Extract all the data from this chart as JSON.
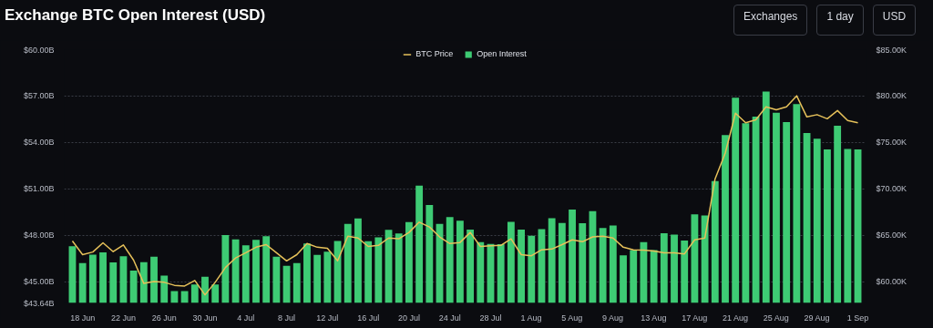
{
  "chart_data": {
    "type": "bar",
    "title": "Exchange BTC Open Interest (USD)",
    "annotations": [
      "Exchanges",
      "1 day",
      "USD"
    ],
    "categories": [
      null,
      "18 Jun",
      null,
      null,
      null,
      "22 Jun",
      null,
      null,
      null,
      "26 Jun",
      null,
      null,
      null,
      "30 Jun",
      null,
      null,
      null,
      "4 Jul",
      null,
      null,
      null,
      "8 Jul",
      null,
      null,
      null,
      "12 Jul",
      null,
      null,
      null,
      "16 Jul",
      null,
      null,
      null,
      "20 Jul",
      null,
      null,
      null,
      "24 Jul",
      null,
      null,
      null,
      "28 Jul",
      null,
      null,
      null,
      "1 Aug",
      null,
      null,
      null,
      "5 Aug",
      null,
      null,
      null,
      "9 Aug",
      null,
      null,
      null,
      "13 Aug",
      null,
      null,
      null,
      "17 Aug",
      null,
      null,
      null,
      "21 Aug",
      null,
      null,
      null,
      "25 Aug",
      null,
      null,
      null,
      "29 Aug",
      null,
      null,
      null,
      "1 Sep"
    ],
    "series": [
      {
        "name": "BTC Price",
        "type": "line",
        "axis": "y2",
        "color": "#e6c15a",
        "values": [
          64.4,
          62.93,
          63.21,
          64.2,
          63.25,
          63.97,
          62.34,
          59.83,
          60.03,
          59.95,
          59.63,
          59.55,
          60.15,
          58.6,
          59.95,
          61.54,
          62.57,
          63.13,
          63.73,
          64.01,
          63.13,
          62.26,
          62.93,
          64.13,
          63.73,
          63.61,
          62.26,
          64.92,
          64.72,
          63.81,
          63.93,
          64.72,
          64.64,
          65.32,
          66.43,
          65.91,
          64.84,
          64.13,
          64.24,
          65.32,
          63.81,
          63.89,
          63.93,
          64.64,
          62.93,
          62.81,
          63.45,
          63.53,
          64.01,
          64.52,
          64.32,
          64.84,
          64.92,
          64.72,
          63.73,
          63.45,
          63.41,
          63.33,
          63.13,
          63.13,
          63.01,
          64.52,
          64.72,
          71.08,
          73.87,
          78.16,
          77.13,
          77.45,
          78.84,
          78.52,
          78.84,
          80.03,
          77.76,
          78.0,
          77.56,
          78.44,
          77.37,
          77.13
        ]
      },
      {
        "name": "Open Interest",
        "type": "bar",
        "color": "#3ecb74",
        "values": [
          47.31,
          46.21,
          46.76,
          46.9,
          46.26,
          46.66,
          45.73,
          46.28,
          46.62,
          45.4,
          44.4,
          44.4,
          44.83,
          45.33,
          44.83,
          48.02,
          47.74,
          47.36,
          47.71,
          47.95,
          46.62,
          46.04,
          46.21,
          47.48,
          46.74,
          46.95,
          47.64,
          48.74,
          49.1,
          47.62,
          47.88,
          48.36,
          48.12,
          48.86,
          51.22,
          49.96,
          48.74,
          49.19,
          48.95,
          48.38,
          47.57,
          47.45,
          47.43,
          48.88,
          48.38,
          47.98,
          48.41,
          49.12,
          48.81,
          49.67,
          48.79,
          49.57,
          48.48,
          48.64,
          46.71,
          47.05,
          47.57,
          47.05,
          48.14,
          48.05,
          47.67,
          49.36,
          49.29,
          51.51,
          54.49,
          56.9,
          55.25,
          55.68,
          57.3,
          55.92,
          55.32,
          56.49,
          54.61,
          54.25,
          53.56,
          55.08,
          53.58,
          53.56
        ]
      }
    ],
    "ylim": [
      43.64,
      60
    ],
    "yticks": [
      {
        "value": 43.64,
        "label": "$43.64B"
      },
      {
        "value": 45,
        "label": "$45.00B"
      },
      {
        "value": 48,
        "label": "$48.00B"
      },
      {
        "value": 51,
        "label": "$51.00B"
      },
      {
        "value": 54,
        "label": "$54.00B"
      },
      {
        "value": 57,
        "label": "$57.00B"
      },
      {
        "value": 60,
        "label": "$60.00B"
      }
    ],
    "y2lim": [
      57.73,
      85
    ],
    "y2ticks": [
      {
        "value": 60,
        "label": "$60.00K"
      },
      {
        "value": 65,
        "label": "$65.00K"
      },
      {
        "value": 70,
        "label": "$70.00K"
      },
      {
        "value": 75,
        "label": "$75.00K"
      },
      {
        "value": 80,
        "label": "$80.00K"
      },
      {
        "value": 85,
        "label": "$85.00K"
      }
    ],
    "grid": "y",
    "legend": "top"
  }
}
